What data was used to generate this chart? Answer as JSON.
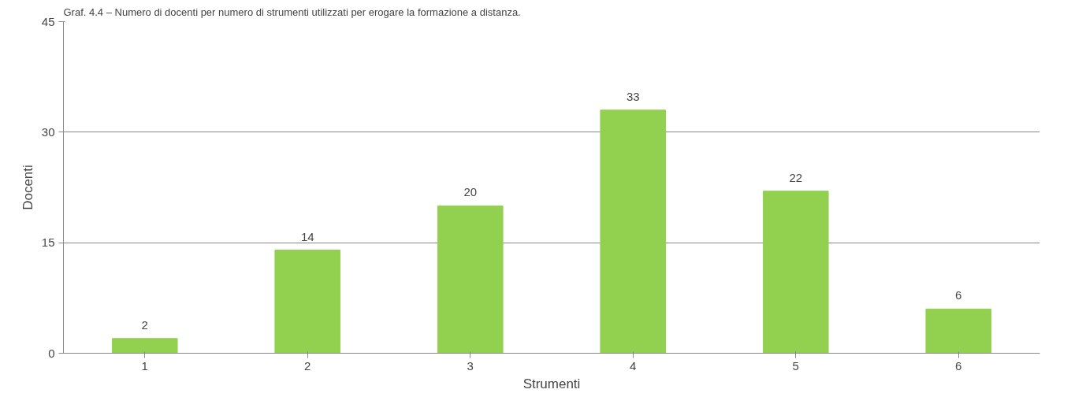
{
  "chart_data": {
    "type": "bar",
    "title": "Graf. 4.4 – Numero di docenti per numero di strumenti utilizzati per erogare la formazione a distanza.",
    "xlabel": "Strumenti",
    "ylabel": "Docenti",
    "categories": [
      "1",
      "2",
      "3",
      "4",
      "5",
      "6"
    ],
    "series": [
      {
        "color": "#92d050",
        "values": [
          2,
          14,
          20,
          33,
          22,
          6
        ]
      }
    ],
    "ylim": [
      0,
      45
    ],
    "yticks": [
      0,
      15,
      30,
      45
    ],
    "grid": "y",
    "data_labels": true
  }
}
